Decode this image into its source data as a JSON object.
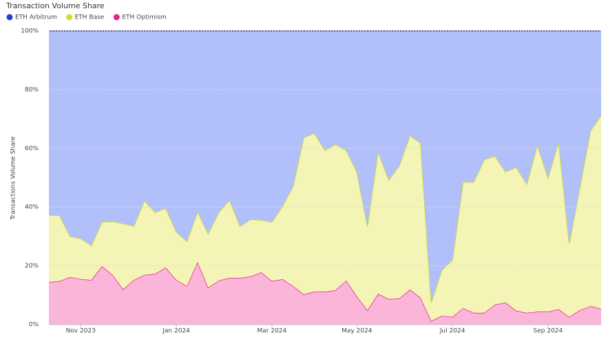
{
  "chart_data": {
    "type": "stacked_area",
    "title": "Transaction Volume Share",
    "y_label": "Transactions Volume Share",
    "categories": [
      null,
      null,
      null,
      "Nov 2023",
      null,
      null,
      null,
      null,
      null,
      null,
      null,
      null,
      "Jan 2024",
      null,
      null,
      null,
      null,
      null,
      null,
      null,
      null,
      "Mar 2024",
      null,
      null,
      null,
      null,
      null,
      null,
      null,
      "May 2024",
      null,
      null,
      null,
      null,
      null,
      null,
      null,
      null,
      "Jul 2024",
      null,
      null,
      null,
      null,
      null,
      null,
      null,
      null,
      "Sep 2024",
      null,
      null,
      null,
      null,
      null
    ],
    "series": [
      {
        "name": "ETH Arbitrum",
        "color": "#2341c4",
        "fill": "#b1c0fa",
        "line": "#33418f",
        "values": [
          62.8,
          62.8,
          70.0,
          70.7,
          73.1,
          65.1,
          64.9,
          65.6,
          66.5,
          57.8,
          61.8,
          60.4,
          68.4,
          71.7,
          61.6,
          69.1,
          61.8,
          57.6,
          66.5,
          64.2,
          64.4,
          65.1,
          59.7,
          52.9,
          36.3,
          34.9,
          40.7,
          38.6,
          40.7,
          48.0,
          66.5,
          41.0,
          50.8,
          45.9,
          35.6,
          38.2,
          92.5,
          81.5,
          78.0,
          51.5,
          51.5,
          43.8,
          42.6,
          48.0,
          46.4,
          52.2,
          38.9,
          50.1,
          37.9,
          72.4,
          53.4,
          34.0,
          28.8
        ]
      },
      {
        "name": "ETH Base",
        "color": "#d4dc1c",
        "fill": "#f3f4b5",
        "line": "#d4dc1c",
        "values": [
          22.7,
          22.4,
          13.8,
          13.8,
          11.7,
          15.0,
          18.2,
          22.4,
          18.3,
          25.3,
          20.9,
          20.2,
          16.4,
          15.2,
          17.1,
          18.3,
          23.2,
          26.5,
          17.6,
          19.4,
          17.8,
          20.1,
          24.8,
          34.0,
          53.4,
          53.9,
          48.1,
          49.7,
          44.3,
          42.4,
          28.6,
          48.5,
          40.5,
          45.2,
          52.5,
          52.7,
          6.3,
          15.5,
          19.4,
          42.9,
          44.5,
          52.2,
          50.6,
          44.5,
          48.9,
          43.8,
          56.7,
          45.5,
          56.9,
          25.0,
          41.7,
          59.7,
          65.8
        ]
      },
      {
        "name": "ETH Optimism",
        "color": "#e5208a",
        "fill": "#fbb5da",
        "line": "#e5208a",
        "values": [
          14.5,
          14.8,
          16.2,
          15.5,
          15.2,
          19.9,
          16.9,
          12.0,
          15.2,
          16.9,
          17.3,
          19.4,
          15.2,
          13.1,
          21.3,
          12.6,
          15.0,
          15.9,
          15.9,
          16.4,
          17.8,
          14.8,
          15.5,
          13.1,
          10.3,
          11.2,
          11.2,
          11.7,
          15.0,
          9.6,
          4.9,
          10.5,
          8.7,
          8.9,
          11.9,
          9.1,
          1.2,
          3.0,
          2.6,
          5.6,
          4.0,
          4.0,
          6.8,
          7.5,
          4.7,
          4.0,
          4.4,
          4.4,
          5.2,
          2.6,
          4.9,
          6.3,
          5.4
        ]
      }
    ],
    "ylim": [
      0,
      100
    ],
    "yticks": [
      {
        "value": 0,
        "label": "0%"
      },
      {
        "value": 20,
        "label": "20%"
      },
      {
        "value": 40,
        "label": "40%"
      },
      {
        "value": 60,
        "label": "60%"
      },
      {
        "value": 80,
        "label": "80%"
      },
      {
        "value": 100,
        "label": "100%"
      }
    ],
    "grid": true
  }
}
